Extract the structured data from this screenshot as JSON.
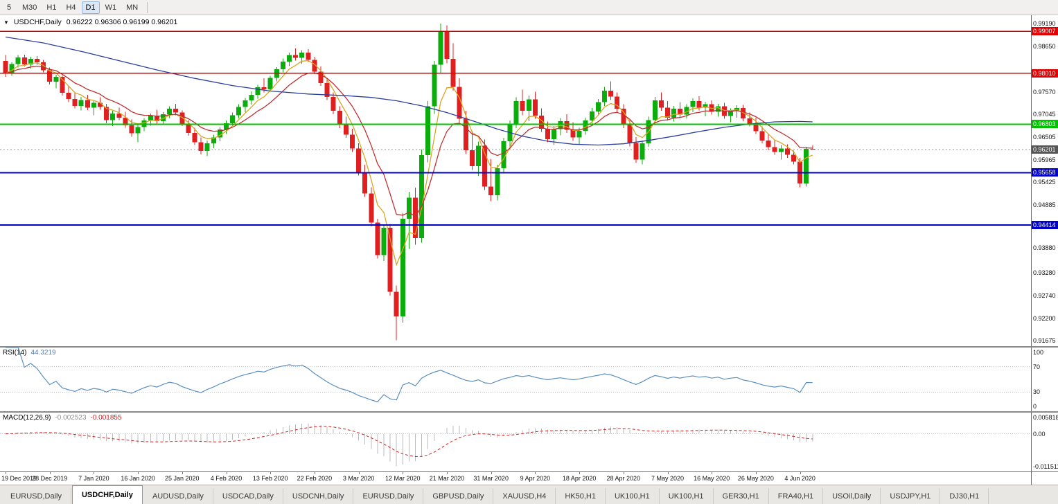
{
  "icons": {
    "dropdown_arrow": "▼"
  },
  "toolbar": {
    "timeframes": [
      {
        "label": "5",
        "active": false
      },
      {
        "label": "M30",
        "active": false
      },
      {
        "label": "H1",
        "active": false
      },
      {
        "label": "H4",
        "active": false
      },
      {
        "label": "D1",
        "active": true
      },
      {
        "label": "W1",
        "active": false
      },
      {
        "label": "MN",
        "active": false
      }
    ]
  },
  "chart": {
    "title_symbol": "USDCHF,Daily",
    "title_ohlc": "0.96222 0.96306 0.96199 0.96201",
    "scale": {
      "top": 0.99387,
      "bottom": 0.91544
    },
    "bar_start_x": 8,
    "bar_step": 9.1,
    "candle_width": 7,
    "axis_ticks": [
      {
        "text": "0.99190",
        "price": 0.9919
      },
      {
        "text": "0.98650",
        "price": 0.9865
      },
      {
        "text": "0.97570",
        "price": 0.9757
      },
      {
        "text": "0.97045",
        "price": 0.97045
      },
      {
        "text": "0.96505",
        "price": 0.96505
      },
      {
        "text": "0.95965",
        "price": 0.95965
      },
      {
        "text": "0.95425",
        "price": 0.95425
      },
      {
        "text": "0.94885",
        "price": 0.94885
      },
      {
        "text": "0.93880",
        "price": 0.9388
      },
      {
        "text": "0.93280",
        "price": 0.9328
      },
      {
        "text": "0.92740",
        "price": 0.9274
      },
      {
        "text": "0.92200",
        "price": 0.922
      },
      {
        "text": "0.91675",
        "price": 0.91675
      }
    ],
    "hlines": [
      {
        "price": 0.99007,
        "label": "0.99007",
        "color": "#e00000",
        "width": 1.5
      },
      {
        "price": 0.9801,
        "label": "0.98010",
        "color": "#e00000",
        "width": 1.5
      },
      {
        "price": 0.96803,
        "label": "0.96803",
        "color": "#00c000",
        "width": 2
      },
      {
        "price": 0.95658,
        "label": "0.95658",
        "color": "#0000c8",
        "width": 2
      },
      {
        "price": 0.94414,
        "label": "0.94414",
        "color": "#0000c8",
        "width": 2
      }
    ],
    "current_price": {
      "price": 0.96201,
      "label": "0.96201",
      "badge_color": "#555555",
      "line_color": "#909090"
    }
  },
  "chart_data": {
    "type": "candlestick",
    "title": "USDCHF Daily",
    "x_label_step": 7,
    "x_labels": [
      "19 Dec 2019",
      "28 Dec 2019",
      "7 Jan 2020",
      "16 Jan 2020",
      "25 Jan 2020",
      "4 Feb 2020",
      "13 Feb 2020",
      "22 Feb 2020",
      "3 Mar 2020",
      "12 Mar 2020",
      "21 Mar 2020",
      "31 Mar 2020",
      "9 Apr 2020",
      "18 Apr 2020",
      "28 Apr 2020",
      "7 May 2020",
      "16 May 2020",
      "26 May 2020",
      "4 Jun 2020"
    ],
    "ylim": [
      0.91544,
      0.99387
    ],
    "ohlc": [
      [
        0.983,
        0.9844,
        0.9793,
        0.9801
      ],
      [
        0.9801,
        0.9827,
        0.9795,
        0.9823
      ],
      [
        0.9823,
        0.9844,
        0.9815,
        0.9839
      ],
      [
        0.9839,
        0.9845,
        0.9817,
        0.9822
      ],
      [
        0.9822,
        0.984,
        0.9812,
        0.9835
      ],
      [
        0.9835,
        0.9842,
        0.9821,
        0.9827
      ],
      [
        0.9827,
        0.9833,
        0.9803,
        0.9808
      ],
      [
        0.9808,
        0.9815,
        0.9775,
        0.9781
      ],
      [
        0.9781,
        0.9798,
        0.9766,
        0.9793
      ],
      [
        0.9793,
        0.9796,
        0.9748,
        0.9755
      ],
      [
        0.9755,
        0.9771,
        0.9733,
        0.974
      ],
      [
        0.974,
        0.9756,
        0.9718,
        0.9724
      ],
      [
        0.9724,
        0.9745,
        0.9713,
        0.9738
      ],
      [
        0.9738,
        0.975,
        0.9714,
        0.972
      ],
      [
        0.972,
        0.9736,
        0.9702,
        0.9731
      ],
      [
        0.9731,
        0.9744,
        0.9715,
        0.9721
      ],
      [
        0.9721,
        0.9729,
        0.9683,
        0.969
      ],
      [
        0.969,
        0.9712,
        0.9676,
        0.9706
      ],
      [
        0.9706,
        0.972,
        0.969,
        0.9696
      ],
      [
        0.9696,
        0.971,
        0.9672,
        0.9678
      ],
      [
        0.9678,
        0.9692,
        0.9651,
        0.9659
      ],
      [
        0.9659,
        0.968,
        0.9638,
        0.9674
      ],
      [
        0.9674,
        0.9695,
        0.9664,
        0.9689
      ],
      [
        0.9689,
        0.9706,
        0.9677,
        0.9701
      ],
      [
        0.9701,
        0.9715,
        0.9682,
        0.9688
      ],
      [
        0.9688,
        0.9709,
        0.9679,
        0.9704
      ],
      [
        0.9704,
        0.9723,
        0.9695,
        0.9717
      ],
      [
        0.9717,
        0.9729,
        0.9702,
        0.9708
      ],
      [
        0.9708,
        0.9713,
        0.9676,
        0.9682
      ],
      [
        0.9682,
        0.969,
        0.9653,
        0.966
      ],
      [
        0.966,
        0.9672,
        0.9631,
        0.9638
      ],
      [
        0.9638,
        0.9649,
        0.9609,
        0.9617
      ],
      [
        0.9617,
        0.9642,
        0.9605,
        0.9635
      ],
      [
        0.9635,
        0.9656,
        0.9624,
        0.9649
      ],
      [
        0.9649,
        0.9674,
        0.964,
        0.9668
      ],
      [
        0.9668,
        0.9689,
        0.9657,
        0.9683
      ],
      [
        0.9683,
        0.9708,
        0.9675,
        0.9702
      ],
      [
        0.9702,
        0.9728,
        0.9694,
        0.9721
      ],
      [
        0.9721,
        0.9743,
        0.9709,
        0.9737
      ],
      [
        0.9737,
        0.9758,
        0.9727,
        0.975
      ],
      [
        0.975,
        0.9774,
        0.9741,
        0.9768
      ],
      [
        0.9768,
        0.9789,
        0.9756,
        0.9763
      ],
      [
        0.9763,
        0.9795,
        0.9759,
        0.979
      ],
      [
        0.979,
        0.9816,
        0.9782,
        0.9811
      ],
      [
        0.9811,
        0.9836,
        0.9803,
        0.9829
      ],
      [
        0.9829,
        0.985,
        0.9818,
        0.9844
      ],
      [
        0.9844,
        0.986,
        0.9831,
        0.9838
      ],
      [
        0.9838,
        0.9856,
        0.9824,
        0.985
      ],
      [
        0.985,
        0.9858,
        0.9828,
        0.9833
      ],
      [
        0.9833,
        0.984,
        0.9799,
        0.9805
      ],
      [
        0.9805,
        0.9817,
        0.9771,
        0.9778
      ],
      [
        0.9778,
        0.9785,
        0.9738,
        0.9745
      ],
      [
        0.9745,
        0.9756,
        0.9704,
        0.9712
      ],
      [
        0.9712,
        0.9723,
        0.9671,
        0.9679
      ],
      [
        0.9679,
        0.9698,
        0.9648,
        0.9656
      ],
      [
        0.9656,
        0.967,
        0.9615,
        0.9623
      ],
      [
        0.9623,
        0.9635,
        0.9559,
        0.9567
      ],
      [
        0.9567,
        0.9584,
        0.9508,
        0.9516
      ],
      [
        0.9516,
        0.9531,
        0.9438,
        0.9447
      ],
      [
        0.9447,
        0.9456,
        0.9362,
        0.937
      ],
      [
        0.937,
        0.9442,
        0.9356,
        0.9435
      ],
      [
        0.9435,
        0.9444,
        0.9274,
        0.9283
      ],
      [
        0.9283,
        0.9298,
        0.9168,
        0.9225
      ],
      [
        0.9225,
        0.947,
        0.921,
        0.9456
      ],
      [
        0.9456,
        0.952,
        0.9385,
        0.9506
      ],
      [
        0.9506,
        0.953,
        0.9395,
        0.941
      ],
      [
        0.941,
        0.962,
        0.94,
        0.9607
      ],
      [
        0.9607,
        0.9735,
        0.959,
        0.9723
      ],
      [
        0.9723,
        0.983,
        0.9705,
        0.9821
      ],
      [
        0.9821,
        0.9919,
        0.98,
        0.9901
      ],
      [
        0.9901,
        0.9915,
        0.9825,
        0.9835
      ],
      [
        0.9835,
        0.9872,
        0.976,
        0.9769
      ],
      [
        0.9769,
        0.9789,
        0.9684,
        0.9693
      ],
      [
        0.9693,
        0.9712,
        0.961,
        0.9619
      ],
      [
        0.9619,
        0.9664,
        0.9572,
        0.9581
      ],
      [
        0.9581,
        0.9639,
        0.9558,
        0.9629
      ],
      [
        0.9629,
        0.9644,
        0.9524,
        0.9533
      ],
      [
        0.9533,
        0.9598,
        0.9498,
        0.9512
      ],
      [
        0.9512,
        0.9584,
        0.95,
        0.9576
      ],
      [
        0.9576,
        0.9648,
        0.9564,
        0.964
      ],
      [
        0.964,
        0.9689,
        0.9625,
        0.968
      ],
      [
        0.968,
        0.9744,
        0.9671,
        0.9735
      ],
      [
        0.9735,
        0.9762,
        0.9702,
        0.9712
      ],
      [
        0.9712,
        0.9748,
        0.9688,
        0.9739
      ],
      [
        0.9739,
        0.9757,
        0.9693,
        0.9701
      ],
      [
        0.9701,
        0.9718,
        0.9662,
        0.967
      ],
      [
        0.967,
        0.9687,
        0.9638,
        0.9645
      ],
      [
        0.9645,
        0.9676,
        0.9631,
        0.9669
      ],
      [
        0.9669,
        0.9695,
        0.9654,
        0.9688
      ],
      [
        0.9688,
        0.9704,
        0.966,
        0.9667
      ],
      [
        0.9667,
        0.9685,
        0.9641,
        0.9649
      ],
      [
        0.9649,
        0.9672,
        0.9633,
        0.9665
      ],
      [
        0.9665,
        0.9696,
        0.9656,
        0.9689
      ],
      [
        0.9689,
        0.9719,
        0.968,
        0.9711
      ],
      [
        0.9711,
        0.974,
        0.9703,
        0.9733
      ],
      [
        0.9733,
        0.9769,
        0.9724,
        0.976
      ],
      [
        0.976,
        0.9782,
        0.9738,
        0.9746
      ],
      [
        0.9746,
        0.9756,
        0.9709,
        0.9717
      ],
      [
        0.9717,
        0.9728,
        0.9671,
        0.9679
      ],
      [
        0.9679,
        0.969,
        0.9628,
        0.9636
      ],
      [
        0.9636,
        0.965,
        0.9589,
        0.9597
      ],
      [
        0.9597,
        0.9642,
        0.9585,
        0.9635
      ],
      [
        0.9635,
        0.9698,
        0.9627,
        0.969
      ],
      [
        0.969,
        0.9745,
        0.9683,
        0.9737
      ],
      [
        0.9737,
        0.9756,
        0.9712,
        0.972
      ],
      [
        0.972,
        0.9735,
        0.9689,
        0.9696
      ],
      [
        0.9696,
        0.9724,
        0.9687,
        0.9717
      ],
      [
        0.9717,
        0.9733,
        0.9695,
        0.9703
      ],
      [
        0.9703,
        0.9728,
        0.9694,
        0.9721
      ],
      [
        0.9721,
        0.9742,
        0.9709,
        0.9735
      ],
      [
        0.9735,
        0.9747,
        0.9713,
        0.972
      ],
      [
        0.972,
        0.9734,
        0.9699,
        0.9728
      ],
      [
        0.9728,
        0.9737,
        0.9703,
        0.971
      ],
      [
        0.971,
        0.9729,
        0.9698,
        0.9723
      ],
      [
        0.9723,
        0.9731,
        0.9693,
        0.97
      ],
      [
        0.97,
        0.9718,
        0.9685,
        0.9712
      ],
      [
        0.9712,
        0.9725,
        0.9696,
        0.9719
      ],
      [
        0.9719,
        0.9726,
        0.9688,
        0.9694
      ],
      [
        0.9694,
        0.9708,
        0.9675,
        0.9682
      ],
      [
        0.9682,
        0.9696,
        0.9657,
        0.9664
      ],
      [
        0.9664,
        0.9675,
        0.9635,
        0.9642
      ],
      [
        0.9642,
        0.9658,
        0.9619,
        0.9626
      ],
      [
        0.9626,
        0.9644,
        0.9608,
        0.9615
      ],
      [
        0.9615,
        0.9631,
        0.9597,
        0.9623
      ],
      [
        0.9623,
        0.9633,
        0.9601,
        0.9608
      ],
      [
        0.9608,
        0.9618,
        0.9585,
        0.9592
      ],
      [
        0.9592,
        0.9601,
        0.9531,
        0.954
      ],
      [
        0.954,
        0.9627,
        0.9533,
        0.96222
      ],
      [
        0.96222,
        0.96306,
        0.96199,
        0.96201
      ]
    ],
    "overlays": [
      {
        "name": "ma-fast",
        "color": "#d9a520",
        "method": "ema",
        "period": 5
      },
      {
        "name": "ma-mid",
        "color": "#c03030",
        "method": "ema",
        "period": 11
      },
      {
        "name": "ma-slow",
        "color": "#2b3f9e",
        "points": [
          [
            0,
            0.9887
          ],
          [
            6,
            0.9873
          ],
          [
            12,
            0.9853
          ],
          [
            18,
            0.9831
          ],
          [
            24,
            0.9809
          ],
          [
            30,
            0.9789
          ],
          [
            36,
            0.9772
          ],
          [
            42,
            0.9759
          ],
          [
            48,
            0.9752
          ],
          [
            54,
            0.9748
          ],
          [
            58,
            0.9744
          ],
          [
            62,
            0.9736
          ],
          [
            66,
            0.9724
          ],
          [
            70,
            0.9708
          ],
          [
            74,
            0.9689
          ],
          [
            78,
            0.9669
          ],
          [
            82,
            0.9652
          ],
          [
            86,
            0.964
          ],
          [
            90,
            0.9633
          ],
          [
            94,
            0.9631
          ],
          [
            98,
            0.9634
          ],
          [
            102,
            0.9642
          ],
          [
            106,
            0.9652
          ],
          [
            110,
            0.9663
          ],
          [
            114,
            0.9673
          ],
          [
            118,
            0.9681
          ],
          [
            122,
            0.9686
          ],
          [
            126,
            0.9687
          ],
          [
            128,
            0.9686
          ]
        ]
      }
    ]
  },
  "rsi": {
    "label": "RSI(14)",
    "value": "44.3219",
    "period": 14,
    "color": "#5a8fc0",
    "levels_dashed": [
      70,
      30
    ],
    "axis_labels": [
      {
        "text": "100",
        "value": 100
      },
      {
        "text": "70",
        "value": 70
      },
      {
        "text": "30",
        "value": 30
      },
      {
        "text": "0",
        "value": 0
      }
    ]
  },
  "macd": {
    "label": "MACD(12,26,9)",
    "value_main": "-0.002523",
    "value_signal": "-0.001855",
    "fast": 12,
    "slow": 26,
    "signal": 9,
    "hist_color": "#bbbbbb",
    "signal_color": "#cc2222",
    "scale_top": 0.005818,
    "scale_bottom": -0.011511,
    "axis_labels": [
      {
        "text": "0.005818",
        "value": 0.005818
      },
      {
        "text": "0.00",
        "value": 0
      },
      {
        "text": "-0.011511",
        "value": -0.011511
      }
    ]
  },
  "tabs": [
    {
      "label": "EURUSD,Daily",
      "active": false
    },
    {
      "label": "USDCHF,Daily",
      "active": true
    },
    {
      "label": "AUDUSD,Daily",
      "active": false
    },
    {
      "label": "USDCAD,Daily",
      "active": false
    },
    {
      "label": "USDCNH,Daily",
      "active": false
    },
    {
      "label": "EURUSD,Daily",
      "active": false
    },
    {
      "label": "GBPUSD,Daily",
      "active": false
    },
    {
      "label": "XAUUSD,H4",
      "active": false
    },
    {
      "label": "HK50,H1",
      "active": false
    },
    {
      "label": "UK100,H1",
      "active": false
    },
    {
      "label": "UK100,H1",
      "active": false
    },
    {
      "label": "GER30,H1",
      "active": false
    },
    {
      "label": "FRA40,H1",
      "active": false
    },
    {
      "label": "USOil,Daily",
      "active": false
    },
    {
      "label": "USDJPY,H1",
      "active": false
    },
    {
      "label": "DJ30,H1",
      "active": false
    }
  ],
  "colors": {
    "up": "#0cac0c",
    "down": "#e02020",
    "background": "#ffffff"
  }
}
